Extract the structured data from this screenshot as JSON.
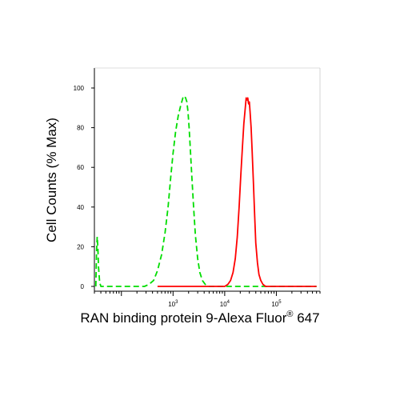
{
  "chart_data": {
    "type": "line",
    "title": "",
    "xlabel": "RAN binding protein 9-Alexa Fluor",
    "xlabel_superscript": "®",
    "xlabel_suffix": " 647",
    "ylabel": "Cell Counts (% Max)",
    "xscale": "log",
    "xlim": [
      30,
      700000
    ],
    "ylim": [
      0,
      100
    ],
    "x_ticks": [
      {
        "value": 1000,
        "base": "10",
        "exp": "3"
      },
      {
        "value": 10000,
        "base": "10",
        "exp": "4"
      },
      {
        "value": 100000,
        "base": "10",
        "exp": "5"
      }
    ],
    "y_ticks": [
      "0",
      "20",
      "40",
      "60",
      "80",
      "100"
    ],
    "legend": "none",
    "grid": false,
    "series": [
      {
        "color": "#00dd00",
        "style": "dashed",
        "x": [
          32,
          33,
          34,
          35,
          36,
          38,
          40,
          60,
          200,
          280,
          340,
          420,
          500,
          600,
          700,
          800,
          900,
          1000,
          1120,
          1260,
          1400,
          1550,
          1650,
          1750,
          1850,
          1950,
          2050,
          2150,
          2300,
          2500,
          2700,
          3000,
          3300,
          3700,
          4200,
          5000,
          8000,
          30000,
          100000,
          600000
        ],
        "y": [
          0,
          18,
          25,
          20,
          10,
          2,
          0,
          0,
          0,
          0,
          1,
          3,
          8,
          16,
          27,
          40,
          55,
          67,
          78,
          86,
          91,
          95,
          96,
          95,
          93,
          88,
          80,
          70,
          56,
          40,
          26,
          14,
          7,
          3,
          1,
          0,
          0,
          0,
          0,
          0
        ]
      },
      {
        "color": "#ff0000",
        "style": "solid",
        "x": [
          500,
          5000,
          10000,
          11500,
          13000,
          14500,
          16000,
          17500,
          19000,
          20500,
          22000,
          23500,
          25000,
          26000,
          27000,
          28000,
          29000,
          30000,
          31000,
          32500,
          34000,
          36000,
          38000,
          40000,
          43000,
          46000,
          50000,
          55000,
          62000,
          70000,
          600000
        ],
        "y": [
          0,
          0,
          0,
          1,
          3,
          7,
          14,
          25,
          40,
          56,
          70,
          82,
          90,
          95,
          94,
          95,
          92,
          93,
          88,
          80,
          68,
          52,
          36,
          22,
          12,
          6,
          3,
          1,
          0,
          0,
          0
        ]
      }
    ]
  }
}
